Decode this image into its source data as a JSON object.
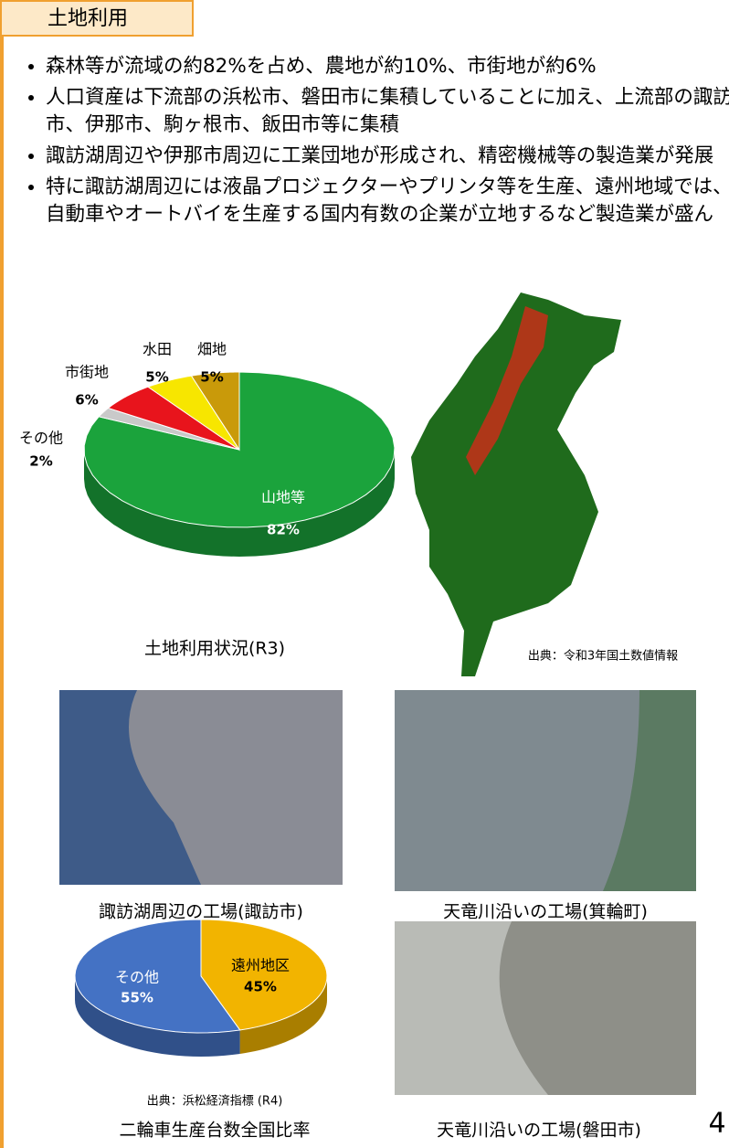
{
  "header": {
    "title": "土地利用"
  },
  "bullets": [
    "森林等が流域の約82%を占め、農地が約10%、市街地が約6%",
    "人口資産は下流部の浜松市、磐田市に集積していることに加え、上流部の諏訪市、伊那市、駒ヶ根市、飯田市等に集積",
    "諏訪湖周辺や伊那市周辺に工業団地が形成され、精密機械等の製造業が発展",
    "特に諏訪湖周辺には液晶プロジェクターやプリンタ等を生産、遠州地域では、自動車やオートバイを生産する国内有数の企業が立地するなど製造業が盛ん"
  ],
  "chart_data": [
    {
      "type": "pie",
      "title": "土地利用状況(R3)",
      "categories": [
        "山地等",
        "その他",
        "市街地",
        "水田",
        "畑地"
      ],
      "values": [
        82,
        2,
        6,
        5,
        5
      ],
      "value_labels": [
        "82%",
        "2%",
        "6%",
        "5%",
        "5%"
      ],
      "colors": [
        "#1ba33c",
        "#c9c9c9",
        "#e8141c",
        "#f7e600",
        "#c99a0a"
      ]
    },
    {
      "type": "pie",
      "title": "二輪車生産台数全国比率",
      "subtitle": "出典：浜松経済指標 (R4)",
      "categories": [
        "遠州地区",
        "その他"
      ],
      "values": [
        45,
        55
      ],
      "value_labels": [
        "45%",
        "55%"
      ],
      "colors": [
        "#f2b400",
        "#4472c4"
      ]
    }
  ],
  "map": {
    "source": "出典：令和3年国土数値情報"
  },
  "photos": [
    {
      "caption": "諏訪湖周辺の工場(諏訪市)"
    },
    {
      "caption": "天竜川沿いの工場(箕輪町)"
    },
    {
      "caption": "天竜川沿いの工場(磐田市)"
    }
  ],
  "page_number": "4"
}
